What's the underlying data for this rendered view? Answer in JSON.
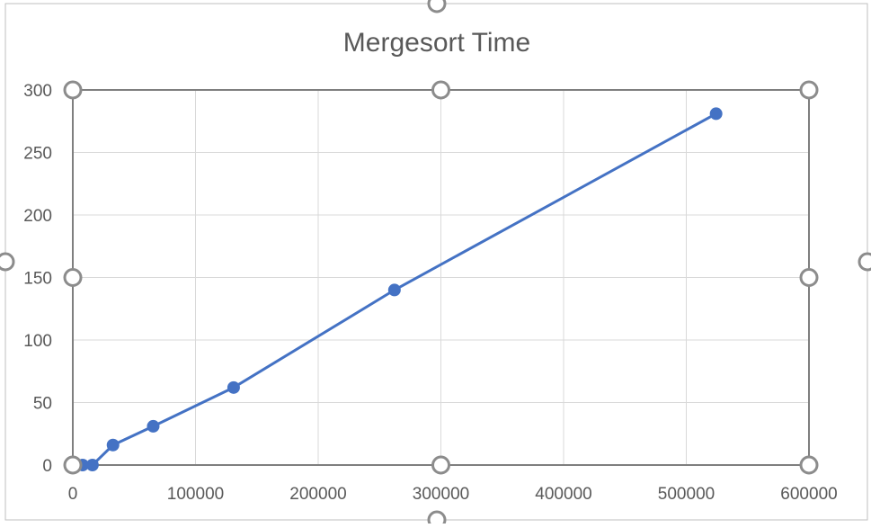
{
  "chart_data": {
    "type": "scatter",
    "title": "Mergesort Time",
    "xlabel": "",
    "ylabel": "",
    "xlim": [
      0,
      600000
    ],
    "ylim": [
      0,
      300
    ],
    "x_ticks": [
      "0",
      "100000",
      "200000",
      "300000",
      "400000",
      "500000",
      "600000"
    ],
    "y_ticks": [
      "0",
      "50",
      "100",
      "150",
      "200",
      "250",
      "300"
    ],
    "grid": true,
    "legend": "none",
    "series": [
      {
        "color": "#4472C4",
        "x": [
          1000,
          2000,
          4000,
          8000,
          16000,
          32768,
          65536,
          131072,
          262144,
          524288
        ],
        "y": [
          0,
          0,
          0,
          0,
          0,
          16,
          31,
          62,
          140,
          281
        ]
      }
    ]
  }
}
